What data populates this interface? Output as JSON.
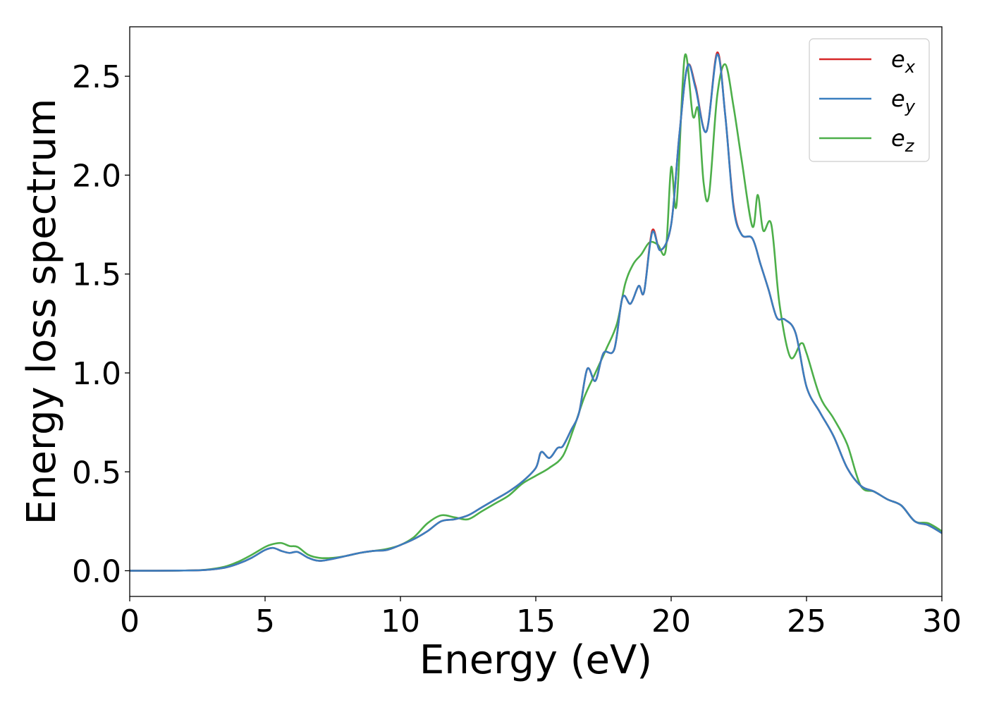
{
  "chart_data": {
    "type": "line",
    "title": "",
    "xlabel": "Energy (eV)",
    "ylabel": "Energy loss spectrum",
    "xlim": [
      0,
      30
    ],
    "ylim": [
      -0.13,
      2.75
    ],
    "xticks": [
      0,
      5,
      10,
      15,
      20,
      25,
      30
    ],
    "yticks": [
      0.0,
      0.5,
      1.0,
      1.5,
      2.0,
      2.5
    ],
    "xtick_labels": [
      "0",
      "5",
      "10",
      "15",
      "20",
      "25",
      "30"
    ],
    "ytick_labels": [
      "0.0",
      "0.5",
      "1.0",
      "1.5",
      "2.0",
      "2.5"
    ],
    "grid": false,
    "legend_position": "top-right",
    "series": [
      {
        "name": "e",
        "subscript": "x",
        "color": "#d62728",
        "x": [
          0,
          1,
          2,
          2.8,
          3.5,
          4,
          4.5,
          5,
          5.3,
          5.6,
          5.9,
          6.2,
          6.6,
          7,
          7.5,
          8,
          8.5,
          9,
          9.5,
          10,
          10.5,
          11,
          11.5,
          12,
          12.5,
          13,
          13.5,
          14,
          14.5,
          15,
          15.2,
          15.5,
          15.8,
          16,
          16.3,
          16.6,
          16.9,
          17.2,
          17.5,
          17.9,
          18.2,
          18.5,
          18.8,
          19,
          19.3,
          19.6,
          20,
          20.3,
          20.6,
          20.9,
          21.3,
          21.7,
          22,
          22.3,
          22.6,
          23,
          23.3,
          23.6,
          23.9,
          24.2,
          24.6,
          25,
          25.5,
          26,
          26.5,
          27,
          27.5,
          28,
          28.5,
          29,
          29.5,
          30
        ],
        "values": [
          0,
          0,
          0.001,
          0.004,
          0.015,
          0.035,
          0.065,
          0.105,
          0.115,
          0.1,
          0.09,
          0.095,
          0.065,
          0.05,
          0.06,
          0.075,
          0.09,
          0.1,
          0.105,
          0.13,
          0.16,
          0.2,
          0.25,
          0.26,
          0.28,
          0.32,
          0.36,
          0.4,
          0.45,
          0.52,
          0.6,
          0.57,
          0.62,
          0.63,
          0.71,
          0.8,
          1.02,
          0.96,
          1.1,
          1.12,
          1.38,
          1.35,
          1.44,
          1.41,
          1.72,
          1.62,
          1.75,
          2.2,
          2.55,
          2.45,
          2.22,
          2.62,
          2.3,
          1.85,
          1.7,
          1.68,
          1.55,
          1.42,
          1.28,
          1.27,
          1.2,
          0.93,
          0.8,
          0.68,
          0.52,
          0.43,
          0.4,
          0.36,
          0.33,
          0.25,
          0.23,
          0.19
        ]
      },
      {
        "name": "e",
        "subscript": "y",
        "color": "#3a7ebf",
        "x": [
          0,
          1,
          2,
          2.8,
          3.5,
          4,
          4.5,
          5,
          5.3,
          5.6,
          5.9,
          6.2,
          6.6,
          7,
          7.5,
          8,
          8.5,
          9,
          9.5,
          10,
          10.5,
          11,
          11.5,
          12,
          12.5,
          13,
          13.5,
          14,
          14.5,
          15,
          15.2,
          15.5,
          15.8,
          16,
          16.3,
          16.6,
          16.9,
          17.2,
          17.5,
          17.9,
          18.2,
          18.5,
          18.8,
          19,
          19.3,
          19.6,
          20,
          20.3,
          20.6,
          20.9,
          21.3,
          21.7,
          22,
          22.3,
          22.6,
          23,
          23.3,
          23.6,
          23.9,
          24.2,
          24.6,
          25,
          25.5,
          26,
          26.5,
          27,
          27.5,
          28,
          28.5,
          29,
          29.5,
          30
        ],
        "values": [
          0,
          0,
          0.001,
          0.004,
          0.015,
          0.035,
          0.065,
          0.105,
          0.115,
          0.1,
          0.09,
          0.095,
          0.065,
          0.05,
          0.06,
          0.075,
          0.09,
          0.1,
          0.105,
          0.13,
          0.16,
          0.2,
          0.25,
          0.26,
          0.28,
          0.32,
          0.36,
          0.4,
          0.45,
          0.52,
          0.6,
          0.57,
          0.62,
          0.63,
          0.71,
          0.8,
          1.02,
          0.96,
          1.1,
          1.12,
          1.38,
          1.35,
          1.44,
          1.41,
          1.71,
          1.62,
          1.75,
          2.2,
          2.55,
          2.44,
          2.22,
          2.61,
          2.3,
          1.84,
          1.7,
          1.68,
          1.55,
          1.42,
          1.28,
          1.27,
          1.2,
          0.93,
          0.8,
          0.68,
          0.52,
          0.43,
          0.4,
          0.36,
          0.33,
          0.25,
          0.23,
          0.19
        ]
      },
      {
        "name": "e",
        "subscript": "z",
        "color": "#4daf4a",
        "x": [
          0,
          1,
          2,
          2.8,
          3.5,
          4,
          4.5,
          5,
          5.3,
          5.6,
          5.9,
          6.2,
          6.6,
          7,
          7.5,
          8,
          8.5,
          9,
          9.5,
          10,
          10.5,
          11,
          11.5,
          12,
          12.5,
          13,
          13.5,
          14,
          14.5,
          15,
          15.5,
          16,
          16.4,
          16.8,
          17.2,
          17.6,
          18,
          18.3,
          18.6,
          18.9,
          19.2,
          19.5,
          19.8,
          20,
          20.2,
          20.5,
          20.8,
          21,
          21.2,
          21.4,
          21.7,
          22,
          22.3,
          22.6,
          23,
          23.2,
          23.4,
          23.7,
          24,
          24.4,
          24.8,
          25,
          25.5,
          26,
          26.5,
          27,
          27.5,
          28,
          28.5,
          29,
          29.5,
          30
        ],
        "values": [
          0,
          0,
          0.001,
          0.005,
          0.02,
          0.045,
          0.08,
          0.12,
          0.135,
          0.14,
          0.125,
          0.12,
          0.08,
          0.065,
          0.065,
          0.075,
          0.09,
          0.1,
          0.11,
          0.13,
          0.17,
          0.24,
          0.28,
          0.27,
          0.26,
          0.3,
          0.34,
          0.38,
          0.44,
          0.48,
          0.52,
          0.58,
          0.72,
          0.88,
          1.0,
          1.12,
          1.25,
          1.45,
          1.55,
          1.6,
          1.66,
          1.65,
          1.62,
          2.04,
          1.85,
          2.6,
          2.3,
          2.33,
          1.96,
          1.9,
          2.4,
          2.56,
          2.35,
          2.08,
          1.74,
          1.9,
          1.72,
          1.75,
          1.35,
          1.08,
          1.15,
          1.1,
          0.88,
          0.77,
          0.64,
          0.43,
          0.4,
          0.36,
          0.33,
          0.25,
          0.24,
          0.2
        ]
      }
    ]
  }
}
